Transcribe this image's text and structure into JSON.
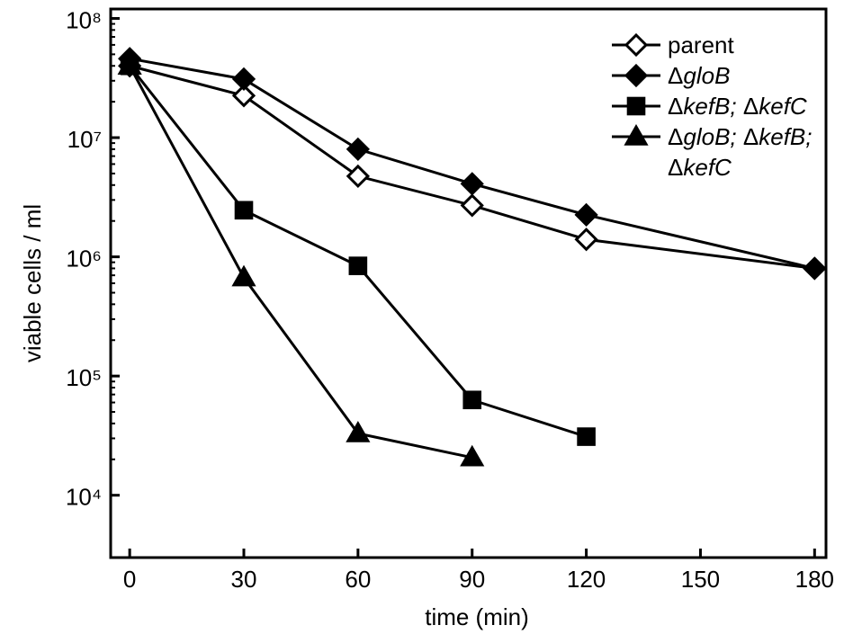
{
  "chart_data": {
    "type": "line",
    "x_label": "time (min)",
    "y_label": "viable cells / ml",
    "xlim": [
      -5,
      183
    ],
    "xticks": [
      0,
      30,
      60,
      90,
      120,
      150,
      180
    ],
    "ylim": [
      3000,
      120000000
    ],
    "y_log": true,
    "yticks": [
      {
        "value": 10000,
        "label": "10⁴"
      },
      {
        "value": 100000,
        "label": "10⁵"
      },
      {
        "value": 1000000,
        "label": "10⁶"
      },
      {
        "value": 10000000,
        "label": "10⁷"
      },
      {
        "value": 100000000,
        "label": "10⁸"
      }
    ],
    "legend": "upper right",
    "series": [
      {
        "name": "parent",
        "color": "#000000",
        "marker": "diamond",
        "filled": false,
        "x": [
          0,
          30,
          60,
          90,
          120,
          180
        ],
        "values": [
          40000000,
          22500000,
          4750000,
          2700000,
          1400000,
          800000
        ]
      },
      {
        "name": "ΔgloB",
        "color": "#000000",
        "marker": "diamond",
        "filled": true,
        "x": [
          0,
          30,
          60,
          90,
          120,
          180
        ],
        "values": [
          46000000,
          31000000,
          8000000,
          4100000,
          2250000,
          800000
        ]
      },
      {
        "name": "ΔkefB; ΔkefC",
        "color": "#000000",
        "marker": "square",
        "filled": true,
        "x": [
          0,
          30,
          60,
          90,
          120
        ],
        "values": [
          40000000,
          2460000,
          840000,
          63000,
          31000
        ]
      },
      {
        "name": "ΔgloB; ΔkefB; ΔkefC",
        "color": "#000000",
        "marker": "triangle",
        "filled": true,
        "x": [
          0,
          30,
          60,
          90
        ],
        "values": [
          40000000,
          670000,
          33000,
          20700
        ]
      }
    ]
  }
}
